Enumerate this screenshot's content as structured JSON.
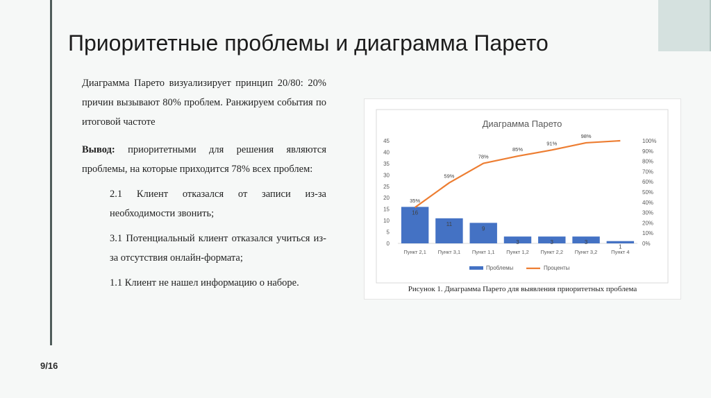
{
  "slide": {
    "title": "Приоритетные проблемы и диаграмма Парето",
    "page_number": "9/16",
    "paragraph1": "Диаграмма Парето визуализирует принцип 20/80: 20% причин вызывают 80% проблем. Ранжируем события по итоговой частоте",
    "conclusion_label": "Вывод:",
    "conclusion_text": " приоритетными для решения являются проблемы, на которые приходится 78% всех проблем:",
    "items": [
      "2.1 Клиент отказался от записи из-за необходимости звонить;",
      "3.1 Потенциальный клиент отказался учиться из-за отсутствия онлайн-формата;",
      "1.1 Клиент не нашел информацию о наборе."
    ],
    "figure_caption": "Рисунок 1. Диаграмма Парето для выявления приоритетных проблема"
  },
  "colors": {
    "bar": "#4472c4",
    "line": "#ed7d31"
  },
  "chart_data": {
    "type": "bar",
    "title": "Диаграмма Парето",
    "categories": [
      "Пункт 2,1",
      "Пункт 3,1",
      "Пункт 1,1",
      "Пункт 1,2",
      "Пункт 2,2",
      "Пункт 3,2",
      "Пункт 4"
    ],
    "series": [
      {
        "name": "Проблемы",
        "type": "bar",
        "values": [
          16,
          11,
          9,
          3,
          3,
          3,
          1
        ],
        "labels": [
          "16",
          "11",
          "9",
          "3",
          "3",
          "3",
          "1"
        ]
      },
      {
        "name": "Проценты",
        "type": "line",
        "axis": "right",
        "values": [
          35,
          59,
          78,
          85,
          91,
          98,
          100
        ],
        "labels": [
          "35%",
          "59%",
          "78%",
          "85%",
          "91%",
          "98%",
          ""
        ]
      }
    ],
    "ylim": [
      0,
      45
    ],
    "y_ticks": [
      "0",
      "5",
      "10",
      "15",
      "20",
      "25",
      "30",
      "35",
      "40",
      "45"
    ],
    "y2lim": [
      0,
      100
    ],
    "y2_ticks": [
      "0%",
      "10%",
      "20%",
      "30%",
      "40%",
      "50%",
      "60%",
      "70%",
      "80%",
      "90%",
      "100%"
    ],
    "grid": false,
    "legend": "bottom"
  }
}
